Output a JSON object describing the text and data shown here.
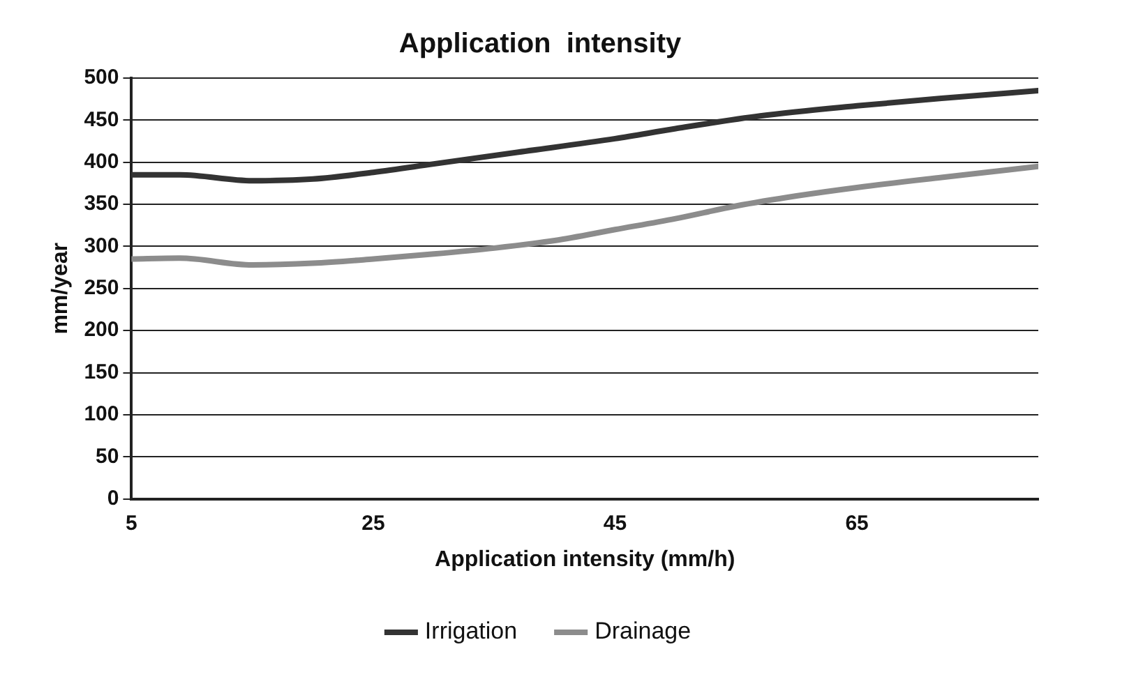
{
  "chart_data": {
    "type": "line",
    "title": "Application  intensity",
    "xlabel": "Application intensity (mm/h)",
    "ylabel": "mm/year",
    "xlim": [
      5,
      80
    ],
    "xticks": [
      5,
      25,
      45,
      65
    ],
    "ylim": [
      0,
      500
    ],
    "yticks": [
      0,
      50,
      100,
      150,
      200,
      250,
      300,
      350,
      400,
      450,
      500
    ],
    "grid": "y",
    "legend": "bottom",
    "marker": "none",
    "line_style": "solid",
    "series": [
      {
        "name": "Irrigation",
        "color": "#333333",
        "x": [
          5,
          9,
          15,
          20,
          25,
          30,
          37,
          45,
          50,
          57,
          65,
          72,
          80
        ],
        "values": [
          385,
          385,
          378,
          380,
          388,
          398,
          412,
          428,
          440,
          455,
          467,
          476,
          485
        ]
      },
      {
        "name": "Drainage",
        "color": "#8c8c8c",
        "x": [
          5,
          9,
          15,
          20,
          25,
          30,
          35,
          40,
          45,
          50,
          55,
          60,
          65,
          72,
          80
        ],
        "values": [
          285,
          286,
          278,
          280,
          285,
          291,
          298,
          307,
          320,
          333,
          348,
          360,
          370,
          382,
          395
        ]
      }
    ]
  }
}
